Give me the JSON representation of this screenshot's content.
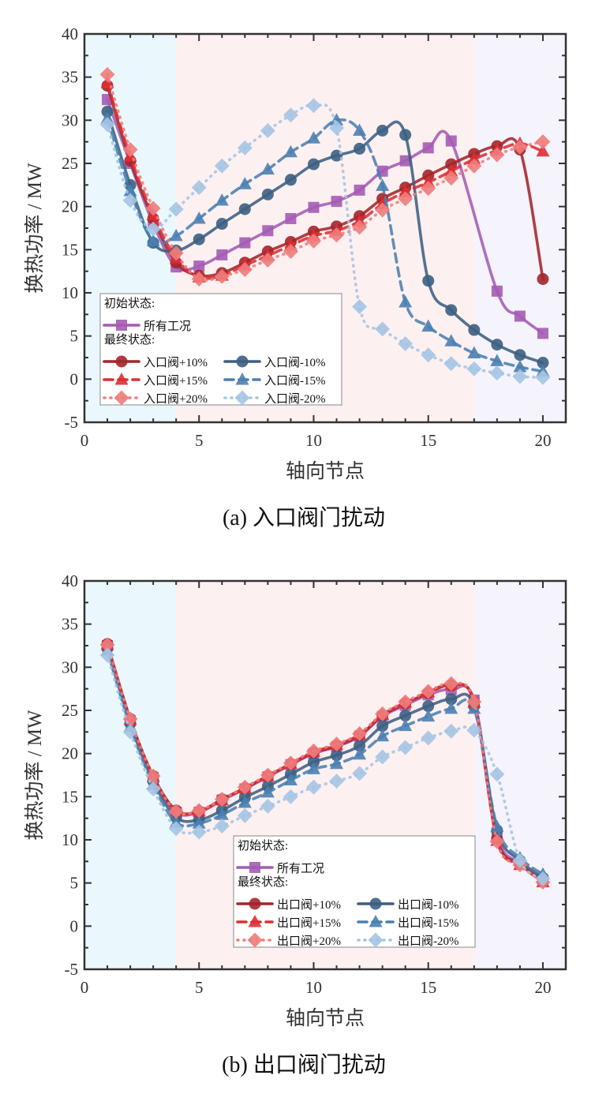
{
  "colors": {
    "bg_region_1": "#eaf8fd",
    "bg_region_2": "#fdf0f0",
    "bg_region_3": "#f5f3fb",
    "initial": "#a45bb4",
    "plus10": "#a3262b",
    "plus15": "#de2e33",
    "plus20": "#f07c7c",
    "minus10": "#3c5f82",
    "minus15": "#4a80b2",
    "minus20": "#a5c4e3"
  },
  "chart_data": [
    {
      "type": "line",
      "caption": "(a) 入口阀门扰动",
      "xlabel": "轴向节点",
      "ylabel": "换热功率 / MW",
      "xlim": [
        0,
        21
      ],
      "ylim": [
        -5,
        40
      ],
      "xticks": [
        0,
        5,
        10,
        15,
        20
      ],
      "yticks": [
        -5,
        0,
        5,
        10,
        15,
        20,
        25,
        30,
        35,
        40
      ],
      "background_regions": [
        [
          0,
          4
        ],
        [
          4,
          17
        ],
        [
          17,
          21
        ]
      ],
      "legend": {
        "placement": "lower-left",
        "heading_initial": "初始状态:",
        "heading_final": "最终状态:"
      },
      "x": [
        1,
        2,
        3,
        4,
        5,
        6,
        7,
        8,
        9,
        10,
        11,
        12,
        13,
        14,
        15,
        16,
        17,
        18,
        19,
        20
      ],
      "series": [
        {
          "name": "所有工况",
          "key": "initial",
          "marker": "square",
          "style": "solid",
          "values": [
            32.4,
            25.0,
            18.0,
            13.0,
            13.1,
            14.4,
            15.8,
            17.2,
            18.6,
            19.9,
            20.6,
            21.9,
            24.1,
            25.3,
            26.8,
            27.6,
            null,
            10.2,
            7.3,
            5.3
          ]
        },
        {
          "name": "入口阀+10%",
          "key": "plus10",
          "marker": "circle",
          "style": "solid",
          "values": [
            34.0,
            25.3,
            18.6,
            13.5,
            12.0,
            12.3,
            13.5,
            14.8,
            15.9,
            17.1,
            17.7,
            18.9,
            20.9,
            22.2,
            23.6,
            24.9,
            26.1,
            27.0,
            26.6,
            11.6
          ]
        },
        {
          "name": "入口阀-10%",
          "key": "minus10",
          "marker": "circle",
          "style": "solid",
          "values": [
            31.0,
            22.5,
            15.8,
            14.9,
            16.2,
            18.0,
            19.7,
            21.4,
            23.1,
            24.9,
            25.9,
            26.7,
            28.8,
            28.3,
            11.4,
            8.0,
            5.7,
            4.0,
            2.8,
            1.9
          ]
        },
        {
          "name": "入口阀+15%",
          "key": "plus15",
          "marker": "triangle",
          "style": "dashed",
          "values": [
            34.3,
            25.8,
            19.0,
            14.0,
            11.8,
            12.0,
            13.2,
            14.3,
            15.5,
            16.6,
            17.2,
            18.3,
            20.3,
            21.7,
            22.8,
            24.1,
            25.5,
            26.5,
            27.3,
            26.4
          ]
        },
        {
          "name": "入口阀-15%",
          "key": "minus15",
          "marker": "triangle",
          "style": "dashed",
          "values": [
            30.2,
            21.8,
            16.0,
            16.6,
            18.6,
            20.7,
            22.6,
            24.3,
            26.3,
            27.9,
            30.0,
            28.8,
            22.4,
            8.9,
            6.1,
            4.4,
            3.0,
            2.1,
            1.4,
            0.9
          ]
        },
        {
          "name": "入口阀+20%",
          "key": "plus20",
          "marker": "diamond",
          "style": "dotted",
          "values": [
            35.3,
            26.6,
            19.8,
            14.6,
            11.6,
            11.9,
            12.7,
            13.8,
            14.8,
            16.0,
            16.7,
            17.6,
            19.6,
            20.9,
            22.1,
            23.3,
            24.7,
            26.0,
            26.9,
            27.5
          ]
        },
        {
          "name": "入口阀-20%",
          "key": "minus20",
          "marker": "diamond",
          "style": "dotted",
          "values": [
            29.5,
            20.7,
            17.4,
            19.7,
            22.2,
            24.7,
            26.8,
            28.8,
            30.6,
            31.7,
            29.1,
            8.4,
            5.8,
            4.1,
            2.8,
            1.8,
            1.2,
            0.7,
            0.3,
            0.2
          ]
        }
      ]
    },
    {
      "type": "line",
      "caption": "(b) 出口阀门扰动",
      "xlabel": "轴向节点",
      "ylabel": "换热功率 / MW",
      "xlim": [
        0,
        21
      ],
      "ylim": [
        -5,
        40
      ],
      "xticks": [
        0,
        5,
        10,
        15,
        20
      ],
      "yticks": [
        -5,
        0,
        5,
        10,
        15,
        20,
        25,
        30,
        35,
        40
      ],
      "background_regions": [
        [
          0,
          4
        ],
        [
          4,
          17
        ],
        [
          17,
          21
        ]
      ],
      "legend": {
        "placement": "lower-center",
        "heading_initial": "初始状态:",
        "heading_final": "最终状态:"
      },
      "x": [
        1,
        2,
        3,
        4,
        5,
        6,
        7,
        8,
        9,
        10,
        11,
        12,
        13,
        14,
        15,
        16,
        17,
        18,
        19,
        20
      ],
      "series": [
        {
          "name": "所有工况",
          "key": "initial",
          "marker": "square",
          "style": "solid",
          "values": [
            32.5,
            23.8,
            17.2,
            13.2,
            13.2,
            14.6,
            15.9,
            17.3,
            18.7,
            20.0,
            20.8,
            22.0,
            24.3,
            25.6,
            26.8,
            27.4,
            26.2,
            10.5,
            7.3,
            5.3
          ]
        },
        {
          "name": "出口阀+10%",
          "key": "plus10",
          "marker": "circle",
          "style": "solid",
          "values": [
            32.7,
            24.0,
            17.4,
            13.4,
            13.3,
            14.7,
            16.0,
            17.4,
            18.8,
            20.1,
            20.9,
            22.1,
            24.4,
            25.8,
            27.0,
            27.9,
            26.0,
            10.1,
            7.2,
            5.2
          ]
        },
        {
          "name": "出口阀-10%",
          "key": "minus10",
          "marker": "circle",
          "style": "solid",
          "values": [
            32.2,
            23.5,
            16.8,
            12.6,
            12.3,
            13.4,
            14.9,
            16.2,
            17.6,
            19.0,
            19.8,
            20.9,
            23.2,
            24.4,
            25.5,
            26.3,
            25.5,
            11.1,
            7.6,
            5.6
          ]
        },
        {
          "name": "出口阀+15%",
          "key": "plus15",
          "marker": "triangle",
          "style": "dashed",
          "values": [
            32.6,
            23.9,
            17.3,
            13.3,
            13.3,
            14.6,
            16.0,
            17.4,
            18.8,
            20.2,
            21.0,
            22.2,
            24.5,
            25.9,
            27.1,
            28.0,
            25.9,
            9.9,
            7.1,
            5.1
          ]
        },
        {
          "name": "出口阀-15%",
          "key": "minus15",
          "marker": "triangle",
          "style": "dashed",
          "values": [
            31.9,
            23.1,
            16.4,
            12.0,
            11.9,
            12.9,
            14.3,
            15.5,
            16.9,
            18.2,
            18.8,
            19.9,
            22.0,
            23.2,
            24.3,
            25.2,
            25.2,
            11.5,
            7.9,
            6.0
          ]
        },
        {
          "name": "出口阀+20%",
          "key": "plus20",
          "marker": "diamond",
          "style": "dotted",
          "values": [
            32.6,
            24.0,
            17.4,
            13.3,
            13.4,
            14.7,
            16.1,
            17.5,
            18.9,
            20.3,
            21.1,
            22.3,
            24.6,
            26.0,
            27.2,
            28.1,
            26.0,
            9.8,
            7.1,
            5.1
          ]
        },
        {
          "name": "出口阀-20%",
          "key": "minus20",
          "marker": "diamond",
          "style": "dotted",
          "values": [
            31.4,
            22.5,
            15.9,
            11.3,
            10.9,
            11.6,
            12.8,
            13.9,
            15.0,
            16.1,
            16.8,
            17.7,
            19.6,
            20.7,
            21.8,
            22.6,
            22.7,
            17.6,
            7.6,
            5.5
          ]
        }
      ]
    }
  ]
}
